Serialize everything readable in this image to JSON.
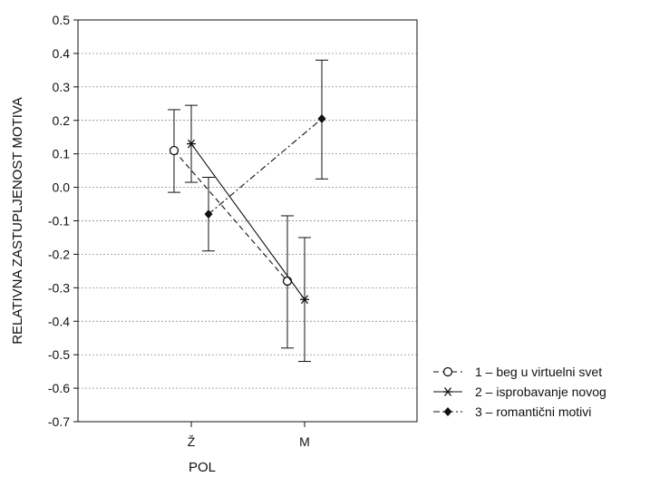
{
  "chart_data": {
    "type": "line",
    "xlabel": "POL",
    "ylabel": "RELATIVNA ZASTUPLJENOST MOTIVA",
    "categories": [
      "Ž",
      "M"
    ],
    "ylim": [
      -0.7,
      0.5
    ],
    "yticks": [
      0.5,
      0.4,
      0.3,
      0.2,
      0.1,
      0.0,
      -0.1,
      -0.2,
      -0.3,
      -0.4,
      -0.5,
      -0.6,
      -0.7
    ],
    "ytick_labels": [
      "0.5",
      "0.4",
      "0.3",
      "0.2",
      "0.1",
      "0.0",
      "-0.1",
      "-0.2",
      "-0.3",
      "-0.4",
      "-0.5",
      "-0.6",
      "-0.7"
    ],
    "grid": true,
    "legend_position": "right",
    "series": [
      {
        "name": "1 – beg u virtuelni svet",
        "marker": "open-circle",
        "line_style": "dashed",
        "values": [
          0.11,
          -0.28
        ],
        "error_low": [
          -0.015,
          -0.48
        ],
        "error_high": [
          0.232,
          -0.085
        ]
      },
      {
        "name": "2 – isprobavanje novog",
        "marker": "asterisk",
        "line_style": "solid",
        "values": [
          0.13,
          -0.335
        ],
        "error_low": [
          0.015,
          -0.52
        ],
        "error_high": [
          0.245,
          -0.15
        ]
      },
      {
        "name": "3 – romantični motivi",
        "marker": "filled-diamond",
        "line_style": "dash-dot",
        "values": [
          -0.08,
          0.205
        ],
        "error_low": [
          -0.19,
          0.025
        ],
        "error_high": [
          0.03,
          0.38
        ]
      }
    ]
  }
}
